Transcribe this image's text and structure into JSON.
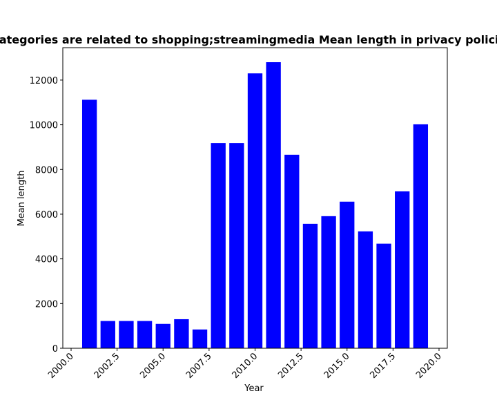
{
  "chart_data": {
    "type": "bar",
    "title": "Categories are related to shopping;streamingmedia Mean length in privacy policies",
    "xlabel": "Year",
    "ylabel": "Mean length",
    "xlim": [
      1999.55,
      2020.45
    ],
    "ylim": [
      0,
      13450
    ],
    "bar_width": 0.8,
    "bar_color": "#0000ff",
    "grid": false,
    "x_ticks": [
      2000,
      2002.5,
      2005,
      2007.5,
      2010,
      2012.5,
      2015,
      2017.5,
      2020
    ],
    "x_tick_labels": [
      "2000.0",
      "2002.5",
      "2005.0",
      "2007.5",
      "2010.0",
      "2012.5",
      "2015.0",
      "2017.5",
      "2020.0"
    ],
    "y_ticks": [
      0,
      2000,
      4000,
      6000,
      8000,
      10000,
      12000
    ],
    "y_tick_labels": [
      "0",
      "2000",
      "4000",
      "6000",
      "8000",
      "10000",
      "12000"
    ],
    "x": [
      2001,
      2002,
      2003,
      2004,
      2005,
      2006,
      2007,
      2008,
      2009,
      2010,
      2011,
      2012,
      2013,
      2014,
      2015,
      2016,
      2017,
      2018,
      2019
    ],
    "values": [
      11120,
      1220,
      1220,
      1220,
      1090,
      1300,
      840,
      9180,
      9180,
      12300,
      12800,
      8660,
      5570,
      5910,
      6560,
      5230,
      4680,
      7020,
      10020
    ]
  }
}
